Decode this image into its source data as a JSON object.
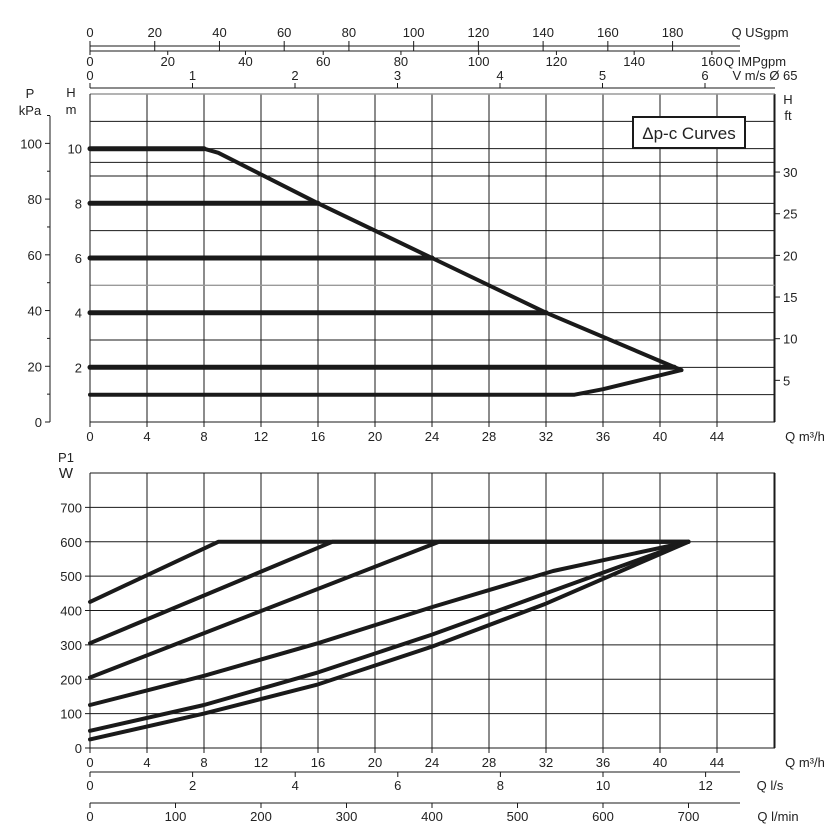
{
  "chart_data": [
    {
      "type": "line",
      "title": "Δp-c Curves",
      "xlabel": "Q m³/h",
      "ylabel_left": "H m",
      "ylabel_pressure": "P kPa",
      "ylabel_right": "H ft",
      "xlim": [
        0,
        48
      ],
      "ylim": [
        0,
        12
      ],
      "x_ticks": [
        "0",
        "4",
        "8",
        "12",
        "16",
        "20",
        "24",
        "28",
        "32",
        "36",
        "40",
        "44"
      ],
      "y_ticks_m": [
        "2",
        "4",
        "6",
        "8",
        "10"
      ],
      "y_ticks_kpa": [
        "0",
        "20",
        "40",
        "60",
        "80",
        "100"
      ],
      "y_ticks_ft": [
        "5",
        "10",
        "15",
        "20",
        "25",
        "30"
      ],
      "top_axes": [
        {
          "unit": "Q USgpm",
          "ticks": [
            "0",
            "20",
            "40",
            "60",
            "80",
            "100",
            "120",
            "140",
            "160",
            "180"
          ]
        },
        {
          "unit": "Q IMPgpm",
          "ticks": [
            "0",
            "20",
            "40",
            "60",
            "80",
            "100",
            "120",
            "140",
            "160"
          ]
        },
        {
          "unit": "V m/s Ø 65",
          "ticks": [
            "0",
            "1",
            "2",
            "3",
            "4",
            "5",
            "6"
          ]
        }
      ],
      "series": [
        {
          "x": [
            0,
            8
          ],
          "y": [
            10,
            10
          ]
        },
        {
          "x": [
            0,
            16
          ],
          "y": [
            8,
            8
          ]
        },
        {
          "x": [
            0,
            24
          ],
          "y": [
            6,
            6
          ]
        },
        {
          "x": [
            0,
            32
          ],
          "y": [
            4,
            4
          ]
        },
        {
          "x": [
            0,
            41
          ],
          "y": [
            2,
            2
          ]
        },
        {
          "x": [
            0,
            34,
            36,
            41.5
          ],
          "y": [
            1,
            1,
            1.2,
            1.9
          ]
        },
        {
          "x": [
            8,
            9,
            16,
            24,
            32,
            41.5
          ],
          "y": [
            10,
            9.85,
            8,
            6,
            4,
            1.9
          ]
        }
      ],
      "grid": true
    },
    {
      "type": "line",
      "ylabel": "P1 W",
      "xlim": [
        0,
        48
      ],
      "ylim": [
        0,
        800
      ],
      "x_ticks": [
        "0",
        "4",
        "8",
        "12",
        "16",
        "20",
        "24",
        "28",
        "32",
        "36",
        "40",
        "44"
      ],
      "y_ticks": [
        "0",
        "100",
        "200",
        "300",
        "400",
        "500",
        "600",
        "700"
      ],
      "vertical_marker_x": 4,
      "bottom_axes": [
        {
          "unit": "Q m³/h",
          "ticks": [
            "0",
            "4",
            "8",
            "12",
            "16",
            "20",
            "24",
            "28",
            "32",
            "36",
            "40",
            "44"
          ]
        },
        {
          "unit": "Q l/s",
          "ticks": [
            "0",
            "2",
            "4",
            "6",
            "8",
            "10",
            "12"
          ]
        },
        {
          "unit": "Q l/min",
          "ticks": [
            "0",
            "100",
            "200",
            "300",
            "400",
            "500",
            "600",
            "700"
          ]
        }
      ],
      "series": [
        {
          "x": [
            0,
            9,
            42
          ],
          "y": [
            425,
            600,
            600
          ]
        },
        {
          "x": [
            0,
            17,
            42
          ],
          "y": [
            305,
            600,
            600
          ]
        },
        {
          "x": [
            0,
            24.5,
            42
          ],
          "y": [
            205,
            600,
            600
          ]
        },
        {
          "x": [
            0,
            8,
            16,
            24,
            32.5,
            42
          ],
          "y": [
            125,
            210,
            305,
            410,
            515,
            600
          ]
        },
        {
          "x": [
            0,
            8,
            16,
            24,
            32,
            42
          ],
          "y": [
            50,
            125,
            220,
            330,
            450,
            600
          ]
        },
        {
          "x": [
            0,
            8,
            16,
            24,
            32,
            42
          ],
          "y": [
            25,
            100,
            185,
            295,
            420,
            600
          ]
        }
      ],
      "grid": true
    }
  ]
}
